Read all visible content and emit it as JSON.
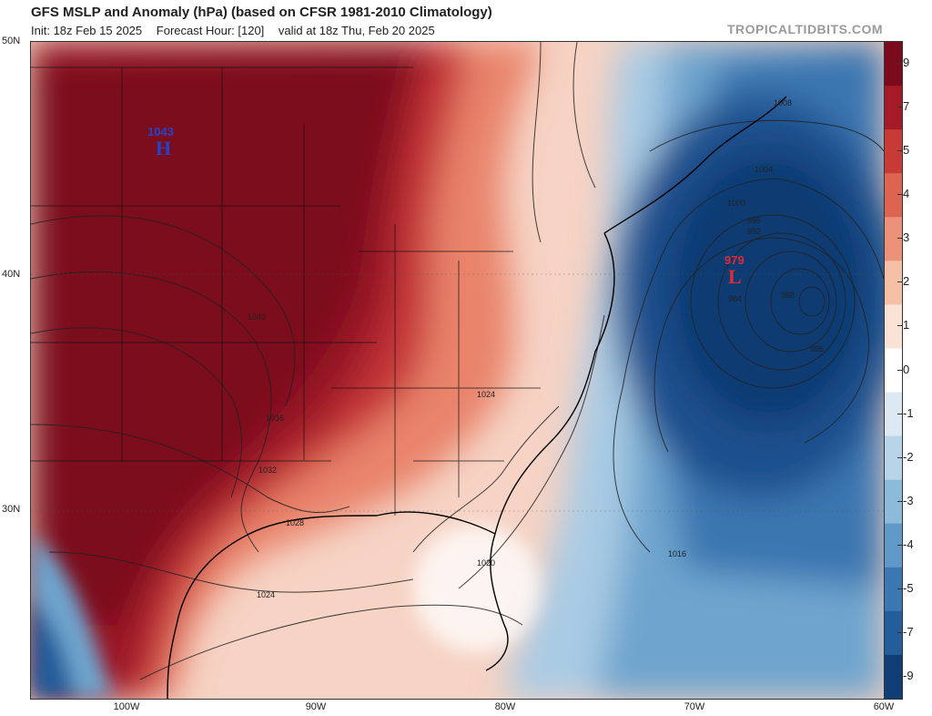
{
  "header": {
    "title": "GFS MSLP and Anomaly (hPa) (based on CFSR 1981-2010 Climatology)",
    "init": "Init: 18z Feb 15 2025",
    "forecast_hour": "Forecast Hour: [120]",
    "valid": "valid at 18z Thu, Feb 20 2025",
    "brand": "TROPICALTIDBITS.COM"
  },
  "axes": {
    "lat_labels": [
      "50N",
      "40N",
      "30N"
    ],
    "lon_labels": [
      "100W",
      "90W",
      "80W",
      "70W",
      "60W"
    ]
  },
  "pressure_centers": {
    "high": {
      "value": "1043",
      "letter": "H",
      "color": "#2244cc"
    },
    "low": {
      "value": "979",
      "letter": "L",
      "color": "#e02a3a"
    }
  },
  "isobar_labels": [
    "1040",
    "1036",
    "1032",
    "1028",
    "1024",
    "1024",
    "1020",
    "1016",
    "1008",
    "1004",
    "1000",
    "996",
    "992",
    "988",
    "984",
    "996"
  ],
  "colorbar": {
    "ticks": [
      "9",
      "7",
      "5",
      "4",
      "3",
      "2",
      "1",
      "0",
      "-1",
      "-2",
      "-3",
      "-4",
      "-5",
      "-7",
      "-9"
    ],
    "colors": [
      "#7a0a1c",
      "#a41a26",
      "#c83a36",
      "#dc6450",
      "#ec9278",
      "#f6c0a6",
      "#fbe2d6",
      "#ffffff",
      "#dce9f3",
      "#b8d4e8",
      "#8cbad9",
      "#5f99c8",
      "#3b77b2",
      "#245d9b",
      "#0f3f76"
    ]
  },
  "colors": {
    "warm_deep": "#7c0a1e",
    "cool_deep": "#0d3a72",
    "isobar": "#222222"
  }
}
